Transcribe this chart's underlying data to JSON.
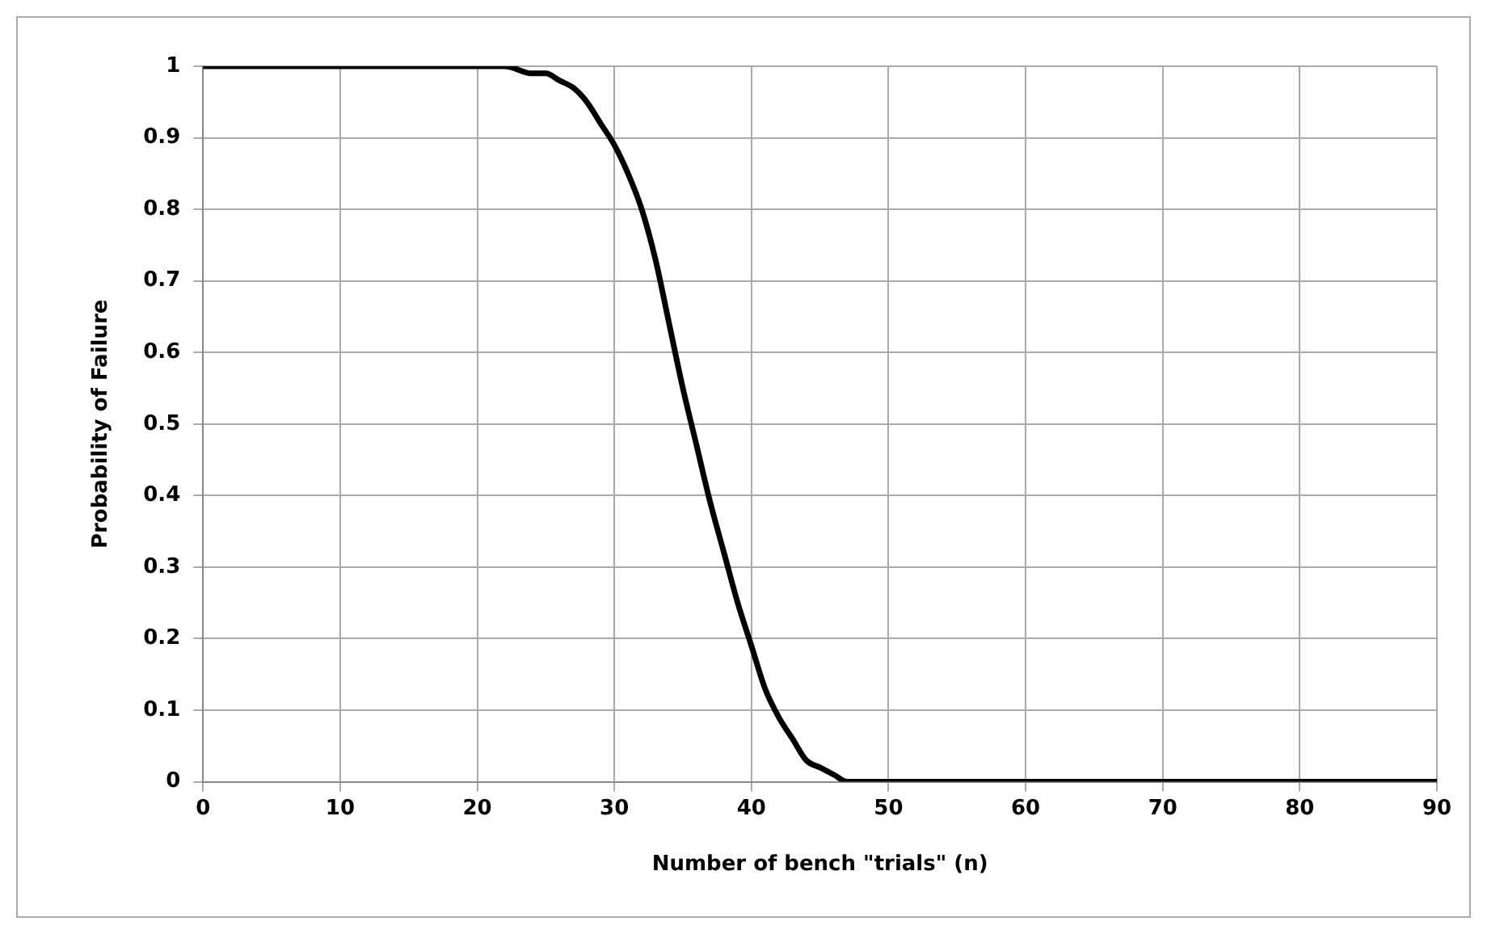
{
  "chart_data": {
    "type": "line",
    "xlabel": "Number of bench \"trials\" (n)",
    "ylabel": "Probability of Failure",
    "x": [
      0,
      10,
      20,
      22,
      24,
      25,
      26,
      27,
      28,
      29,
      30,
      31,
      32,
      33,
      34,
      35,
      36,
      37,
      38,
      39,
      40,
      41,
      42,
      43,
      44,
      45,
      46,
      47,
      48,
      50,
      60,
      70,
      80,
      90
    ],
    "series": [
      {
        "color": "#000000",
        "values": [
          1,
          1,
          1,
          1,
          0.99,
          0.99,
          0.98,
          0.97,
          0.95,
          0.92,
          0.89,
          0.85,
          0.8,
          0.73,
          0.64,
          0.55,
          0.47,
          0.39,
          0.32,
          0.25,
          0.19,
          0.13,
          0.09,
          0.06,
          0.03,
          0.02,
          0.01,
          0,
          0,
          0,
          0,
          0,
          0,
          0
        ]
      }
    ],
    "xlim": [
      0,
      90
    ],
    "xticks": [
      0,
      10,
      20,
      30,
      40,
      50,
      60,
      70,
      80,
      90
    ],
    "ylim": [
      0,
      1
    ],
    "yticks": [
      0,
      0.1,
      0.2,
      0.3,
      0.4,
      0.5,
      0.6,
      0.7,
      0.8,
      0.9,
      1
    ],
    "grid": true,
    "legend": false,
    "marker": "none",
    "line_style": "solid"
  }
}
